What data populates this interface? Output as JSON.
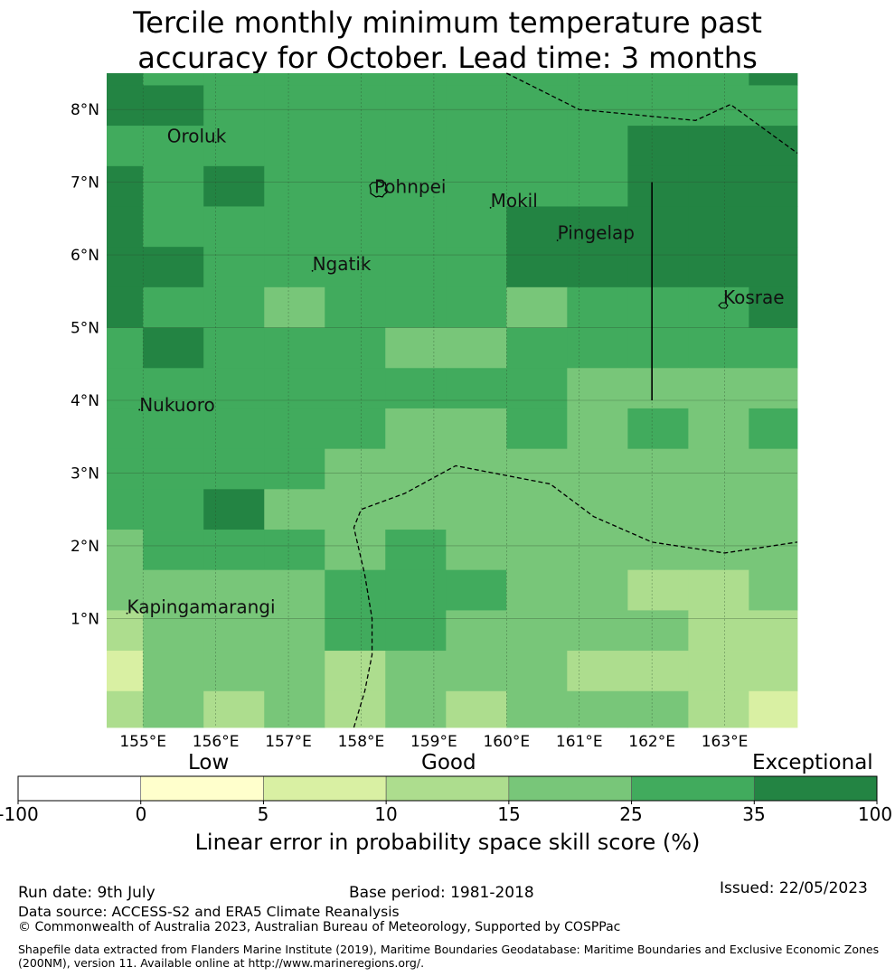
{
  "title": {
    "line1": "Tercile monthly minimum temperature past",
    "line2": "accuracy for October. Lead time: 3 months"
  },
  "map": {
    "lon_range": [
      154.5,
      164.0
    ],
    "lat_range": [
      -0.5,
      8.5
    ],
    "lon_ticks": [
      155,
      156,
      157,
      158,
      159,
      160,
      161,
      162,
      163
    ],
    "lon_tick_labels": [
      "155°E",
      "156°E",
      "157°E",
      "158°E",
      "159°E",
      "160°E",
      "161°E",
      "162°E",
      "163°E"
    ],
    "lat_ticks": [
      1,
      2,
      3,
      4,
      5,
      6,
      7,
      8
    ],
    "lat_tick_labels": [
      "1°N",
      "2°N",
      "3°N",
      "4°N",
      "5°N",
      "6°N",
      "7°N",
      "8°N"
    ],
    "grid_lon_edges": [
      154.5,
      155.0,
      155.833,
      156.667,
      157.5,
      158.333,
      159.167,
      160.0,
      160.833,
      161.667,
      162.5,
      163.333,
      164.0
    ],
    "grid_lat_edges": [
      8.5,
      8.333,
      7.778,
      7.222,
      6.667,
      6.111,
      5.556,
      5.0,
      4.444,
      3.889,
      3.333,
      2.778,
      2.222,
      1.667,
      1.111,
      0.556,
      0.0,
      -0.5
    ],
    "skill_bins": [
      [
        6,
        5,
        5,
        5,
        5,
        5,
        5,
        5,
        5,
        5,
        5,
        6
      ],
      [
        6,
        6,
        5,
        5,
        5,
        5,
        5,
        5,
        5,
        5,
        5,
        5
      ],
      [
        5,
        5,
        5,
        5,
        5,
        5,
        5,
        5,
        5,
        6,
        6,
        6
      ],
      [
        6,
        5,
        6,
        5,
        5,
        5,
        5,
        5,
        5,
        6,
        6,
        6
      ],
      [
        6,
        5,
        5,
        5,
        5,
        5,
        5,
        6,
        6,
        6,
        6,
        6
      ],
      [
        6,
        6,
        5,
        5,
        5,
        5,
        5,
        6,
        6,
        6,
        6,
        6
      ],
      [
        6,
        5,
        5,
        4,
        5,
        5,
        5,
        4,
        5,
        5,
        5,
        6
      ],
      [
        5,
        6,
        5,
        5,
        5,
        4,
        4,
        5,
        5,
        5,
        5,
        5
      ],
      [
        5,
        5,
        5,
        5,
        5,
        5,
        5,
        5,
        4,
        4,
        4,
        4
      ],
      [
        5,
        5,
        5,
        5,
        5,
        4,
        4,
        5,
        4,
        5,
        4,
        5
      ],
      [
        5,
        5,
        5,
        5,
        4,
        4,
        4,
        4,
        4,
        4,
        4,
        4
      ],
      [
        5,
        5,
        6,
        4,
        4,
        4,
        4,
        4,
        4,
        4,
        4,
        4
      ],
      [
        4,
        5,
        5,
        5,
        4,
        5,
        4,
        4,
        4,
        4,
        4,
        4
      ],
      [
        4,
        4,
        4,
        4,
        5,
        5,
        5,
        4,
        4,
        3,
        3,
        4
      ],
      [
        3,
        4,
        4,
        4,
        5,
        5,
        4,
        4,
        4,
        4,
        3,
        3
      ],
      [
        2,
        4,
        4,
        4,
        3,
        4,
        4,
        4,
        3,
        3,
        3,
        3
      ],
      [
        3,
        4,
        3,
        4,
        3,
        4,
        3,
        4,
        4,
        4,
        3,
        2
      ]
    ],
    "places": [
      {
        "name": "Oroluk",
        "lon": 155.33,
        "lat": 7.55
      },
      {
        "name": "Pohnpei",
        "lon": 158.18,
        "lat": 6.85
      },
      {
        "name": "Mokil",
        "lon": 159.78,
        "lat": 6.66
      },
      {
        "name": "Pingelap",
        "lon": 160.7,
        "lat": 6.22
      },
      {
        "name": "Ngatik",
        "lon": 157.33,
        "lat": 5.79
      },
      {
        "name": "Kosrae",
        "lon": 162.98,
        "lat": 5.33
      },
      {
        "name": "Nukuoro",
        "lon": 154.95,
        "lat": 3.85
      },
      {
        "name": "Kapingamarangi",
        "lon": 154.78,
        "lat": 1.07
      }
    ],
    "eez_boundaries": [
      [
        [
          160.0,
          8.5
        ],
        [
          161.0,
          8.0
        ],
        [
          162.6,
          7.85
        ],
        [
          163.08,
          8.07
        ],
        [
          164.0,
          7.4
        ]
      ],
      [
        [
          157.9,
          -0.5
        ],
        [
          158.05,
          0.0
        ],
        [
          158.15,
          0.5
        ],
        [
          158.15,
          1.0
        ],
        [
          158.05,
          1.6
        ],
        [
          157.9,
          2.25
        ],
        [
          158.0,
          2.5
        ],
        [
          158.6,
          2.72
        ],
        [
          159.3,
          3.1
        ],
        [
          160.6,
          2.85
        ],
        [
          161.2,
          2.4
        ],
        [
          162.0,
          2.05
        ],
        [
          163.0,
          1.9
        ],
        [
          164.0,
          2.05
        ]
      ]
    ],
    "solid_line": [
      [
        162.0,
        7.0
      ],
      [
        162.0,
        4.0
      ]
    ]
  },
  "colorbar": {
    "category_labels": [
      "Low",
      "Good",
      "Exceptional"
    ],
    "bins": [
      {
        "from": "-100",
        "to": "0",
        "color": "#ffffff"
      },
      {
        "from": "0",
        "to": "5",
        "color": "#ffffcc"
      },
      {
        "from": "5",
        "to": "10",
        "color": "#d9f0a3"
      },
      {
        "from": "10",
        "to": "15",
        "color": "#addd8e"
      },
      {
        "from": "15",
        "to": "25",
        "color": "#78c679"
      },
      {
        "from": "25",
        "to": "35",
        "color": "#41ab5d"
      },
      {
        "from": "35",
        "to": "100",
        "color": "#238443"
      }
    ],
    "tick_labels": [
      "-100",
      "0",
      "5",
      "10",
      "15",
      "25",
      "35",
      "100"
    ],
    "label": "Linear error in probability space skill score (%)"
  },
  "footer": {
    "run_date": "Run date: 9th July",
    "base_period": "Base period: 1981-2018",
    "issued": "Issued: 22/05/2023",
    "data_source": "Data source: ACCESS-S2 and ERA5 Climate Reanalysis",
    "copyright": "© Commonwealth of Australia 2023, Australian Bureau of Meteorology, Supported by COSPPac",
    "shapefile": "Shapefile data extracted from Flanders Marine Institute (2019), Maritime Boundaries Geodatabase: Maritime Boundaries and Exclusive Economic Zones (200NM), version 11. Available online at http://www.marineregions.org/."
  }
}
